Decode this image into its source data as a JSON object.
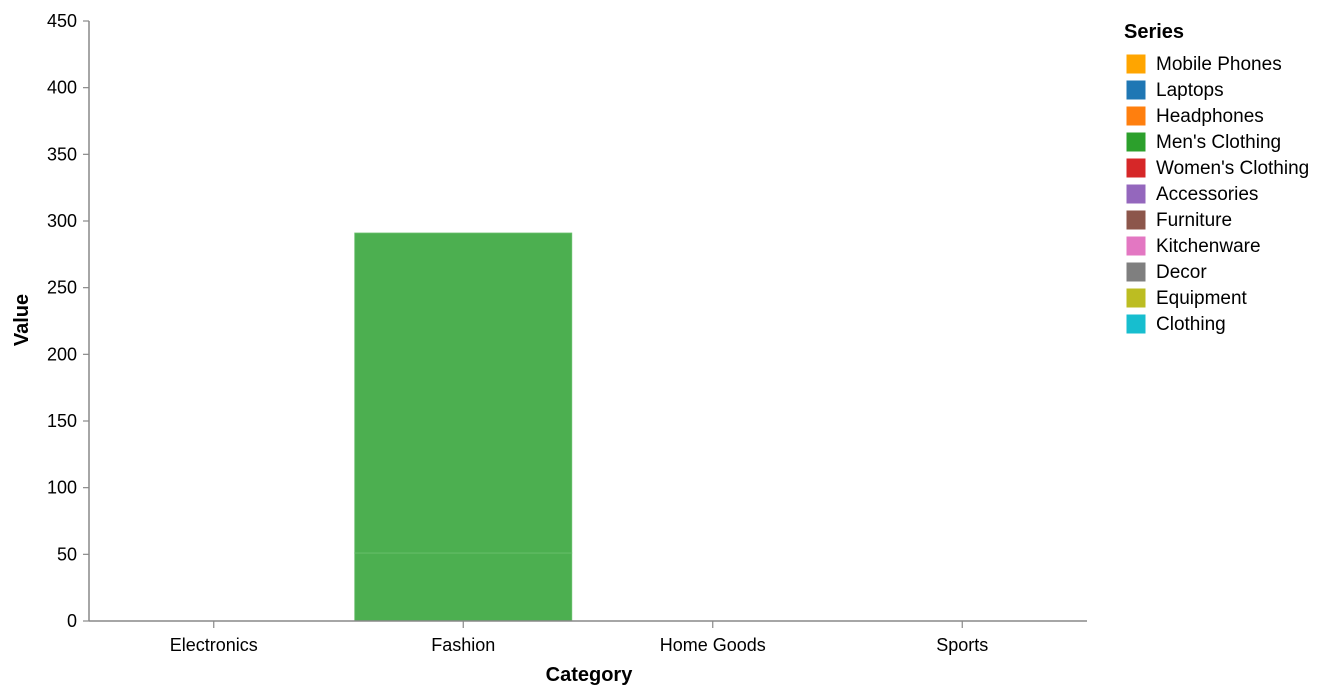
{
  "chart_data": {
    "type": "bar",
    "stacked": true,
    "xlabel": "Category",
    "ylabel": "Value",
    "ylim": [
      0,
      450
    ],
    "yticks": [
      0,
      50,
      100,
      150,
      200,
      250,
      300,
      350,
      400,
      450
    ],
    "grid": false,
    "legend_position": "right",
    "legend_title": "Series",
    "categories": [
      "Electronics",
      "Fashion",
      "Home Goods",
      "Sports"
    ],
    "series": [
      {
        "name": "Mobile Phones",
        "color": "#ffa500",
        "values": [
          0,
          0,
          0,
          0
        ]
      },
      {
        "name": "Laptops",
        "color": "#1f77b4",
        "values": [
          0,
          0,
          0,
          0
        ]
      },
      {
        "name": "Headphones",
        "color": "#ff7f0e",
        "values": [
          0,
          0,
          0,
          0
        ]
      },
      {
        "name": "Men's Clothing",
        "color": "#2ca02c",
        "values": [
          0,
          51,
          0,
          0
        ]
      },
      {
        "name": "Women's Clothing",
        "color": "#d62728",
        "values": [
          0,
          0,
          0,
          0
        ]
      },
      {
        "name": "Accessories",
        "color": "#9467bd",
        "values": [
          0,
          0,
          0,
          0
        ]
      },
      {
        "name": "Furniture",
        "color": "#8c564b",
        "values": [
          0,
          0,
          0,
          0
        ]
      },
      {
        "name": "Kitchenware",
        "color": "#e377c2",
        "values": [
          0,
          0,
          0,
          0
        ]
      },
      {
        "name": "Decor",
        "color": "#7f7f7f",
        "values": [
          0,
          0,
          0,
          0
        ]
      },
      {
        "name": "Equipment",
        "color": "#bcbd22",
        "values": [
          0,
          0,
          0,
          0
        ]
      },
      {
        "name": "Clothing",
        "color": "#17becf",
        "values": [
          0,
          240,
          0,
          0
        ]
      }
    ]
  },
  "colors": {
    "axis": "#888888",
    "fashion_bar_fill": "#4caf50"
  }
}
